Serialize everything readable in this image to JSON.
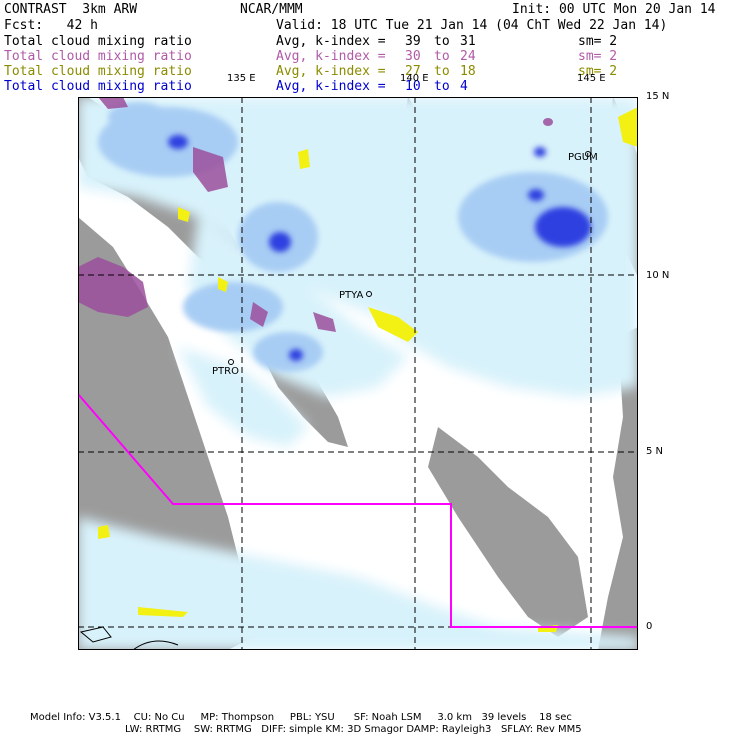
{
  "header": {
    "left_title": "CONTRAST  3km ARW",
    "center_title": "NCAR/MMM",
    "init": "Init: 00 UTC Mon 20 Jan 14",
    "fcst": "Fcst:   42 h",
    "valid": "Valid: 18 UTC Tue 21 Jan 14 (04 ChT Wed 22 Jan 14)"
  },
  "fields": [
    {
      "name": "Total cloud mixing ratio",
      "avg": "Avg, k-index =",
      "from": "39",
      "to": "31",
      "sm": "sm= 2",
      "color": "#000000"
    },
    {
      "name": "Total cloud mixing ratio",
      "avg": "Avg, k-index =",
      "from": "30",
      "to": "24",
      "sm": "sm= 2",
      "color": "#b05aa8"
    },
    {
      "name": "Total cloud mixing ratio",
      "avg": "Avg, k-index =",
      "from": "27",
      "to": "18",
      "sm": "sm= 2",
      "color": "#8b8b00"
    },
    {
      "name": "Total cloud mixing ratio",
      "avg": "Avg, k-index =",
      "from": "10",
      "to": "4",
      "sm": "",
      "color": "#0000d0"
    }
  ],
  "axes": {
    "lon_labels": [
      "135 E",
      "140 E",
      "145 E"
    ],
    "lat_labels": [
      "15 N",
      "10 N",
      "5 N",
      "0"
    ]
  },
  "stations": [
    "PGUM",
    "PTYA",
    "PTRO"
  ],
  "colors": {
    "land": "#9b9b9b",
    "cloud_light": "#d8f2fb",
    "cloud_mid": "#a8cdf4",
    "cloud_dark": "#2e3fe0",
    "purple": "#9b4f9b",
    "yellow": "#f3f013",
    "boundary": "#ff00ff"
  },
  "footer": {
    "line1": "Model Info: V3.5.1    CU: No Cu     MP: Thompson     PBL: YSU      SF: Noah LSM     3.0 km   39 levels    18 sec",
    "line2": "LW: RRTMG    SW: RRTMG   DIFF: simple KM: 3D Smagor DAMP: Rayleigh3   SFLAY: Rev MM5"
  }
}
